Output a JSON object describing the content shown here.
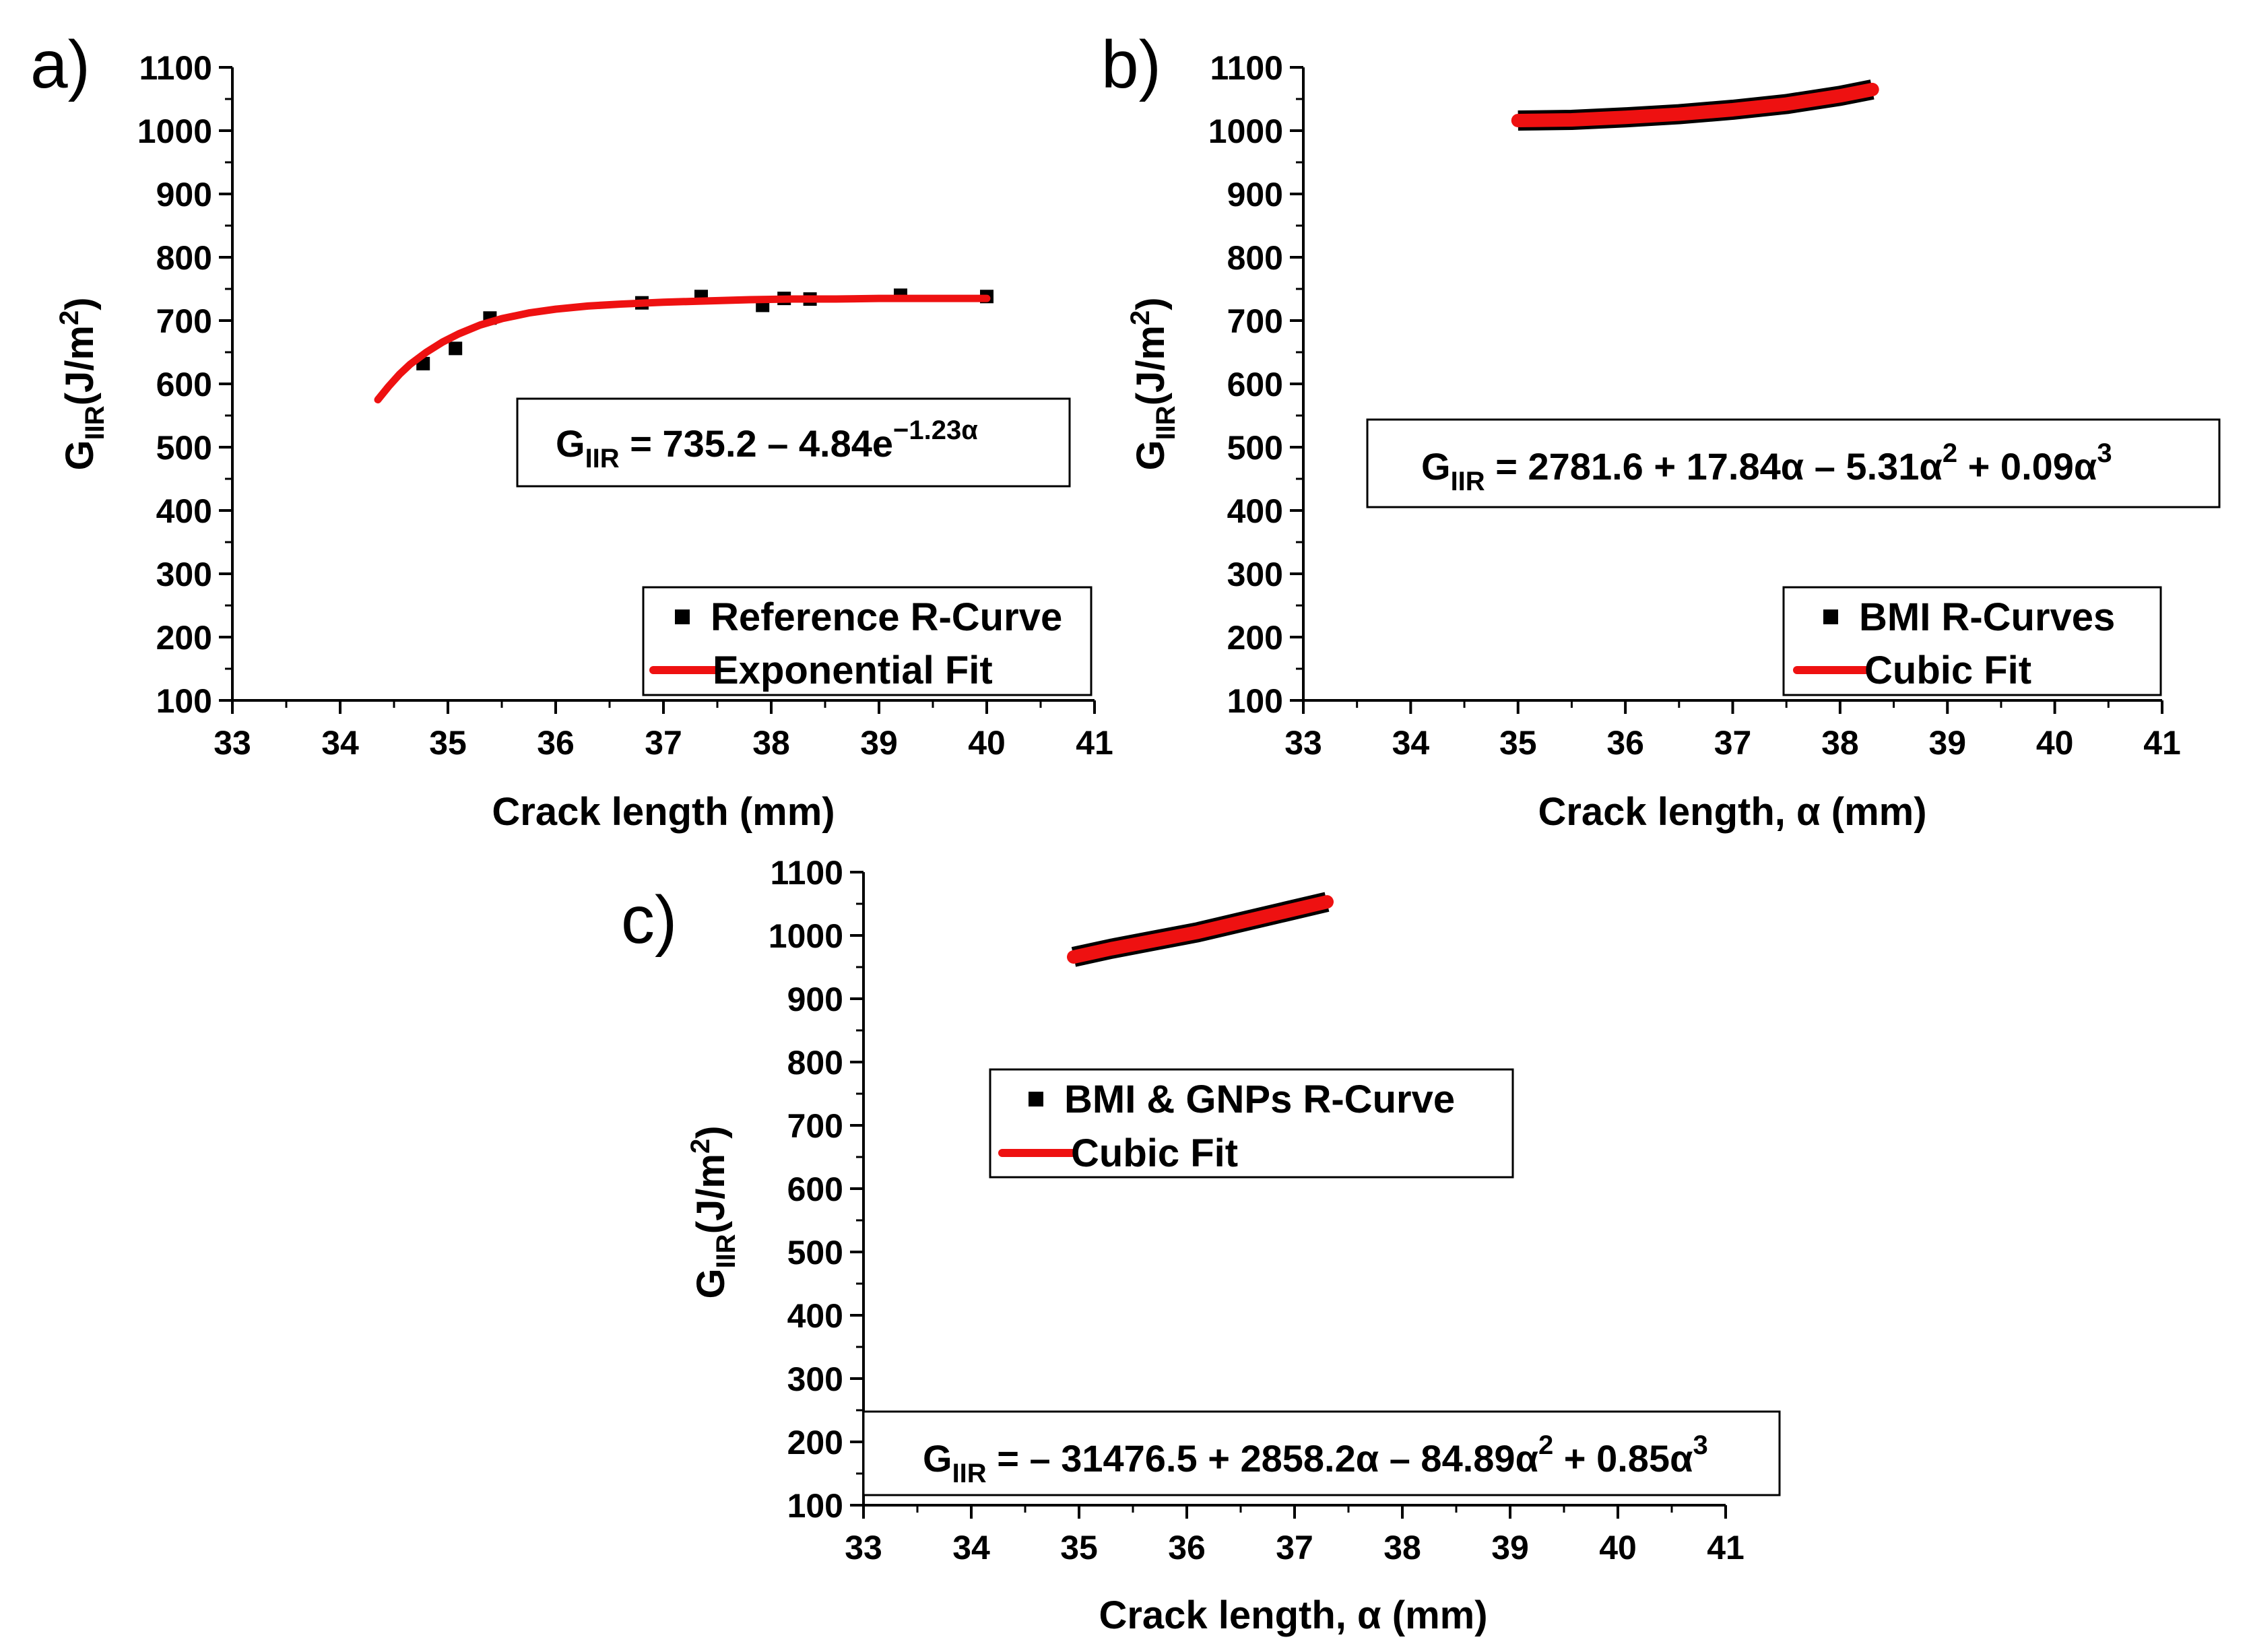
{
  "chart_data": [
    {
      "panel": "a)",
      "type": "scatter",
      "xlabel": "Crack length (mm)",
      "ylabel": {
        "main": "G",
        "sub": "IIR",
        "unit_pre": "(J/m",
        "unit_sup": "2",
        "unit_post": ")"
      },
      "xlim": [
        33,
        41
      ],
      "ylim": [
        100,
        1100
      ],
      "xticks": [
        "33",
        "34",
        "35",
        "36",
        "37",
        "38",
        "39",
        "40",
        "41"
      ],
      "yticks": [
        "100",
        "200",
        "300",
        "400",
        "500",
        "600",
        "700",
        "800",
        "900",
        "1000",
        "1100"
      ],
      "series": [
        {
          "name": "Reference R-Curve",
          "kind": "points",
          "color": "#000000",
          "x": [
            34.77,
            35.07,
            35.39,
            36.8,
            37.35,
            37.92,
            38.12,
            38.36,
            39.2,
            40.0
          ],
          "y": [
            632,
            656,
            704,
            728,
            738,
            724,
            735,
            734,
            740,
            738
          ]
        },
        {
          "name": "Exponential Fit",
          "kind": "curve",
          "color": "#ee1111",
          "x": [
            34.35,
            34.45,
            34.55,
            34.65,
            34.8,
            34.95,
            35.1,
            35.3,
            35.5,
            35.75,
            36.0,
            36.3,
            36.6,
            37.0,
            37.4,
            37.8,
            38.2,
            38.6,
            39.0,
            39.5,
            40.0
          ],
          "y": [
            575,
            596,
            615,
            631,
            650,
            666,
            679,
            693,
            703,
            712,
            718,
            723,
            726,
            729,
            731,
            733,
            734,
            734,
            735,
            735,
            735
          ]
        }
      ],
      "equation": {
        "lhs": "G",
        "lhs_sub": "IIR",
        "rhs": " = 735.2 – 4.84e",
        "rhs_sup": "−1.23α"
      }
    },
    {
      "panel": "b)",
      "type": "line",
      "xlabel": "Crack length, α (mm)",
      "ylabel": {
        "main": "G",
        "sub": "IIR",
        "unit_pre": "(J/m",
        "unit_sup": "2",
        "unit_post": ")"
      },
      "xlim": [
        33,
        41
      ],
      "ylim": [
        100,
        1100
      ],
      "xticks": [
        "33",
        "34",
        "35",
        "36",
        "37",
        "38",
        "39",
        "40",
        "41"
      ],
      "yticks": [
        "100",
        "200",
        "300",
        "400",
        "500",
        "600",
        "700",
        "800",
        "900",
        "1000",
        "1100"
      ],
      "series": [
        {
          "name": "BMI R-Curves",
          "kind": "thick-points",
          "color": "#000000",
          "x": [
            35.0,
            35.5,
            36.0,
            36.5,
            37.0,
            37.5,
            38.0,
            38.3
          ],
          "y": [
            1016,
            1017,
            1021,
            1026,
            1033,
            1042,
            1055,
            1065
          ]
        },
        {
          "name": "Cubic Fit",
          "kind": "curve",
          "color": "#ee1111",
          "x": [
            35.0,
            35.5,
            36.0,
            36.5,
            37.0,
            37.5,
            38.0,
            38.3
          ],
          "y": [
            1016,
            1017,
            1021,
            1026,
            1033,
            1042,
            1055,
            1065
          ]
        }
      ],
      "equation": {
        "lhs": "G",
        "lhs_sub": "IIR",
        "rhs": " = 2781.6 + 17.84α – 5.31α",
        "sup1": "2",
        "rhs2": " + 0.09α",
        "sup2": "3"
      }
    },
    {
      "panel": "c)",
      "type": "line",
      "xlabel": "Crack length, α (mm)",
      "ylabel": {
        "main": "G",
        "sub": "IIR",
        "unit_pre": "(J/m",
        "unit_sup": "2",
        "unit_post": ")"
      },
      "xlim": [
        33,
        41
      ],
      "ylim": [
        100,
        1100
      ],
      "xticks": [
        "33",
        "34",
        "35",
        "36",
        "37",
        "38",
        "39",
        "40",
        "41"
      ],
      "yticks": [
        "100",
        "200",
        "300",
        "400",
        "500",
        "600",
        "700",
        "800",
        "900",
        "1000",
        "1100"
      ],
      "series": [
        {
          "name": "BMI & GNPs  R-Curve",
          "kind": "thick-points",
          "color": "#000000",
          "x": [
            34.95,
            35.3,
            35.7,
            36.1,
            36.5,
            36.9,
            37.3
          ],
          "y": [
            966,
            979,
            992,
            1005,
            1021,
            1037,
            1053
          ]
        },
        {
          "name": "Cubic Fit",
          "kind": "curve",
          "color": "#ee1111",
          "x": [
            34.95,
            35.3,
            35.7,
            36.1,
            36.5,
            36.9,
            37.3
          ],
          "y": [
            966,
            979,
            992,
            1005,
            1021,
            1037,
            1053
          ]
        }
      ],
      "equation": {
        "lhs": "G",
        "lhs_sub": "IIR",
        "rhs": " = – 31476.5 + 2858.2α –  84.89α",
        "sup1": "2",
        "rhs2": " + 0.85α",
        "sup2": "3"
      }
    }
  ]
}
